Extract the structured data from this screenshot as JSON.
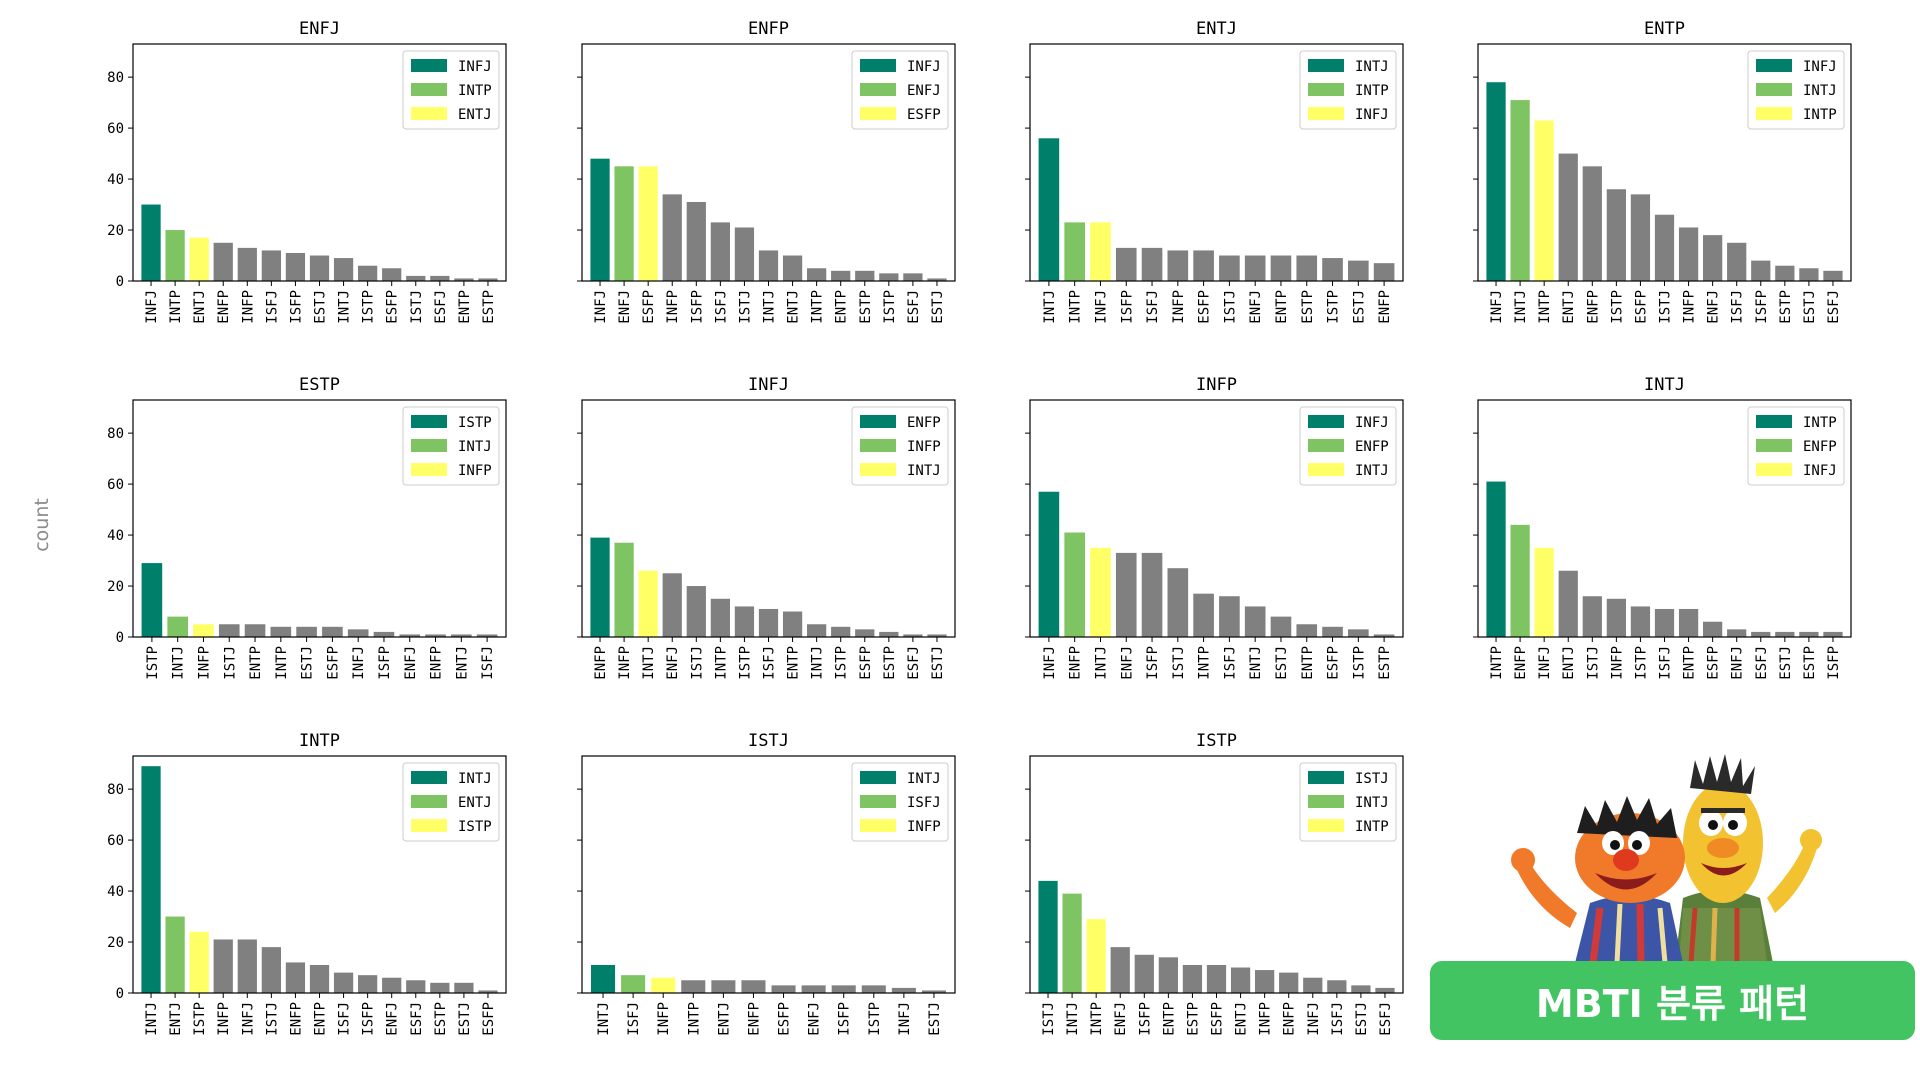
{
  "colors": {
    "first": "#00806a",
    "second": "#7fc462",
    "third": "#ffff66",
    "other": "#808080",
    "banner": "#43c463",
    "axis_label": "#8c8c8c"
  },
  "ylabel": "count",
  "banner_text": "MBTI 분류 패턴",
  "mascot_icon": "sesame-street-bert-and-ernie-illustration",
  "chart_data": [
    {
      "type": "bar",
      "title": "ENFJ",
      "ylim": [
        0,
        93
      ],
      "yticks": [
        0,
        20,
        40,
        60,
        80
      ],
      "legend_position": "top-right",
      "legend": [
        "INFJ",
        "INTP",
        "ENTJ"
      ],
      "categories": [
        "INFJ",
        "INTP",
        "ENTJ",
        "ENFP",
        "INFP",
        "ISFJ",
        "ISFP",
        "ESTJ",
        "INTJ",
        "ISTP",
        "ESFP",
        "ISTJ",
        "ESFJ",
        "ENTP",
        "ESTP"
      ],
      "values": [
        30,
        20,
        17,
        15,
        13,
        12,
        11,
        10,
        9,
        6,
        5,
        2,
        2,
        1,
        1
      ]
    },
    {
      "type": "bar",
      "title": "ENFP",
      "ylim": [
        0,
        93
      ],
      "yticks": [
        0,
        20,
        40,
        60,
        80
      ],
      "legend_position": "top-right",
      "legend": [
        "INFJ",
        "ENFJ",
        "ESFP"
      ],
      "categories": [
        "INFJ",
        "ENFJ",
        "ESFP",
        "INFP",
        "ISFP",
        "ISFJ",
        "ISTJ",
        "INTJ",
        "ENTJ",
        "INTP",
        "ENTP",
        "ESTP",
        "ISTP",
        "ESFJ",
        "ESTJ"
      ],
      "values": [
        48,
        45,
        45,
        34,
        31,
        23,
        21,
        12,
        10,
        5,
        4,
        4,
        3,
        3,
        1
      ]
    },
    {
      "type": "bar",
      "title": "ENTJ",
      "ylim": [
        0,
        93
      ],
      "yticks": [
        0,
        20,
        40,
        60,
        80
      ],
      "legend_position": "top-right",
      "legend": [
        "INTJ",
        "INTP",
        "INFJ"
      ],
      "categories": [
        "INTJ",
        "INTP",
        "INFJ",
        "ISFP",
        "ISFJ",
        "INFP",
        "ESFP",
        "ISTJ",
        "ENFJ",
        "ENTP",
        "ESTP",
        "ISTP",
        "ESTJ",
        "ENFP"
      ],
      "values": [
        56,
        23,
        23,
        13,
        13,
        12,
        12,
        10,
        10,
        10,
        10,
        9,
        8,
        7
      ]
    },
    {
      "type": "bar",
      "title": "ENTP",
      "ylim": [
        0,
        93
      ],
      "yticks": [
        0,
        20,
        40,
        60,
        80
      ],
      "legend_position": "top-right",
      "legend": [
        "INFJ",
        "INTJ",
        "INTP"
      ],
      "categories": [
        "INFJ",
        "INTJ",
        "INTP",
        "ENTJ",
        "ENFP",
        "ISTP",
        "ESFP",
        "ISTJ",
        "INFP",
        "ENFJ",
        "ISFJ",
        "ISFP",
        "ESTP",
        "ESTJ",
        "ESFJ"
      ],
      "values": [
        78,
        71,
        63,
        50,
        45,
        36,
        34,
        26,
        21,
        18,
        15,
        8,
        6,
        5,
        4
      ]
    },
    {
      "type": "bar",
      "title": "ESTP",
      "ylim": [
        0,
        93
      ],
      "yticks": [
        0,
        20,
        40,
        60,
        80
      ],
      "legend_position": "top-right",
      "legend": [
        "ISTP",
        "INTJ",
        "INFP"
      ],
      "categories": [
        "ISTP",
        "INTJ",
        "INFP",
        "ISTJ",
        "ENTP",
        "INTP",
        "ESTJ",
        "ESFP",
        "INFJ",
        "ISFP",
        "ENFJ",
        "ENFP",
        "ENTJ",
        "ISFJ"
      ],
      "values": [
        29,
        8,
        5,
        5,
        5,
        4,
        4,
        4,
        3,
        2,
        1,
        1,
        1,
        1
      ]
    },
    {
      "type": "bar",
      "title": "INFJ",
      "ylim": [
        0,
        93
      ],
      "yticks": [
        0,
        20,
        40,
        60,
        80
      ],
      "legend_position": "top-right",
      "legend": [
        "ENFP",
        "INFP",
        "INTJ"
      ],
      "categories": [
        "ENFP",
        "INFP",
        "INTJ",
        "ENFJ",
        "ISTJ",
        "INTP",
        "ISTP",
        "ISFJ",
        "ENTP",
        "INTJ",
        "ISTP",
        "ESFP",
        "ESTP",
        "ESFJ",
        "ESTJ"
      ],
      "values": [
        39,
        37,
        26,
        25,
        20,
        15,
        12,
        11,
        10,
        5,
        4,
        3,
        2,
        1,
        1
      ]
    },
    {
      "type": "bar",
      "title": "INFP",
      "ylim": [
        0,
        93
      ],
      "yticks": [
        0,
        20,
        40,
        60,
        80
      ],
      "legend_position": "top-right",
      "legend": [
        "INFJ",
        "ENFP",
        "INTJ"
      ],
      "categories": [
        "INFJ",
        "ENFP",
        "INTJ",
        "ENFJ",
        "ISFP",
        "ISTJ",
        "INTP",
        "ISFJ",
        "ENTJ",
        "ESTJ",
        "ENTP",
        "ESFP",
        "ISTP",
        "ESTP"
      ],
      "values": [
        57,
        41,
        35,
        33,
        33,
        27,
        17,
        16,
        12,
        8,
        5,
        4,
        3,
        1
      ]
    },
    {
      "type": "bar",
      "title": "INTJ",
      "ylim": [
        0,
        93
      ],
      "yticks": [
        0,
        20,
        40,
        60,
        80
      ],
      "legend_position": "top-right",
      "legend": [
        "INTP",
        "ENFP",
        "INFJ"
      ],
      "categories": [
        "INTP",
        "ENFP",
        "INFJ",
        "ENTJ",
        "ISTJ",
        "INFP",
        "ISTP",
        "ISFJ",
        "ENTP",
        "ESFP",
        "ENFJ",
        "ESFJ",
        "ESTJ",
        "ESTP",
        "ISFP"
      ],
      "values": [
        61,
        44,
        35,
        26,
        16,
        15,
        12,
        11,
        11,
        6,
        3,
        2,
        2,
        2,
        2
      ]
    },
    {
      "type": "bar",
      "title": "INTP",
      "ylim": [
        0,
        93
      ],
      "yticks": [
        0,
        20,
        40,
        60,
        80
      ],
      "legend_position": "top-right",
      "legend": [
        "INTJ",
        "ENTJ",
        "ISTP"
      ],
      "categories": [
        "INTJ",
        "ENTJ",
        "ISTP",
        "INFP",
        "INFJ",
        "ISTJ",
        "ENFP",
        "ENTP",
        "ISFJ",
        "ISFP",
        "ENFJ",
        "ESFJ",
        "ESTP",
        "ESTJ",
        "ESFP"
      ],
      "values": [
        89,
        30,
        24,
        21,
        21,
        18,
        12,
        11,
        8,
        7,
        6,
        5,
        4,
        4,
        1
      ]
    },
    {
      "type": "bar",
      "title": "ISTJ",
      "ylim": [
        0,
        93
      ],
      "yticks": [
        0,
        20,
        40,
        60,
        80
      ],
      "legend_position": "top-right",
      "legend": [
        "INTJ",
        "ISFJ",
        "INFP"
      ],
      "categories": [
        "INTJ",
        "ISFJ",
        "INFP",
        "INTP",
        "ENTJ",
        "ENFP",
        "ESFP",
        "ENFJ",
        "ISFP",
        "ISTP",
        "INFJ",
        "ESTJ"
      ],
      "values": [
        11,
        7,
        6,
        5,
        5,
        5,
        3,
        3,
        3,
        3,
        2,
        1
      ]
    },
    {
      "type": "bar",
      "title": "ISTP",
      "ylim": [
        0,
        93
      ],
      "yticks": [
        0,
        20,
        40,
        60,
        80
      ],
      "legend_position": "top-right",
      "legend": [
        "ISTJ",
        "INTJ",
        "INTP"
      ],
      "categories": [
        "ISTJ",
        "INTJ",
        "INTP",
        "ENFJ",
        "ISFP",
        "ENTP",
        "ESTP",
        "ESFP",
        "ENTJ",
        "INFP",
        "ENFP",
        "INFJ",
        "ISFJ",
        "ESTJ",
        "ESFJ"
      ],
      "values": [
        44,
        39,
        29,
        18,
        15,
        14,
        11,
        11,
        10,
        9,
        8,
        6,
        5,
        3,
        2
      ]
    }
  ]
}
